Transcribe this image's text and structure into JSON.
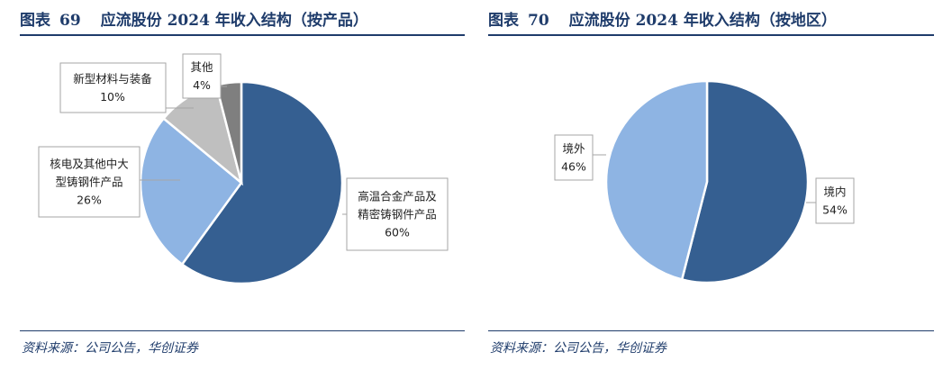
{
  "left": {
    "fig_label": "图表",
    "fig_number": "69",
    "fig_title": "应流股份 2024 年收入结构（按产品）",
    "source": "资料来源：公司公告，华创证券"
  },
  "right": {
    "fig_label": "图表",
    "fig_number": "70",
    "fig_title": "应流股份 2024 年收入结构（按地区）",
    "source": "资料来源：公司公告，华创证券"
  },
  "chart_data": [
    {
      "type": "pie",
      "title": "应流股份 2024 年收入结构（按产品）",
      "unit": "%",
      "slices": [
        {
          "label": "高温合金产品及精密铸钢件产品",
          "label_lines": [
            "高温合金产品及",
            "精密铸钢件产品"
          ],
          "value": 60,
          "value_text": "60%",
          "color": "#355f91"
        },
        {
          "label": "核电及其他中大型铸钢件产品",
          "label_lines": [
            "核电及其他中大",
            "型铸钢件产品"
          ],
          "value": 26,
          "value_text": "26%",
          "color": "#8eb4e3"
        },
        {
          "label": "新型材料与装备",
          "label_lines": [
            "新型材料与装备"
          ],
          "value": 10,
          "value_text": "10%",
          "color": "#bfbfbf"
        },
        {
          "label": "其他",
          "label_lines": [
            "其他"
          ],
          "value": 4,
          "value_text": "4%",
          "color": "#7f7f7f"
        }
      ]
    },
    {
      "type": "pie",
      "title": "应流股份 2024 年收入结构（按地区）",
      "unit": "%",
      "slices": [
        {
          "label": "境内",
          "label_lines": [
            "境内"
          ],
          "value": 54,
          "value_text": "54%",
          "color": "#355f91"
        },
        {
          "label": "境外",
          "label_lines": [
            "境外"
          ],
          "value": 46,
          "value_text": "46%",
          "color": "#8eb4e3"
        }
      ]
    }
  ]
}
